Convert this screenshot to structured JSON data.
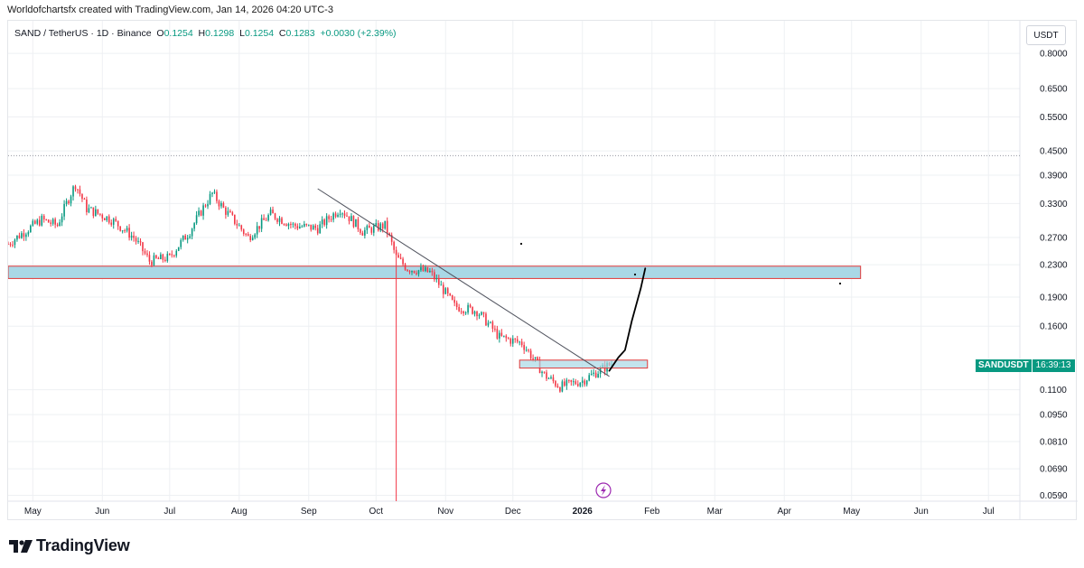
{
  "header": {
    "text": "Worldofchartsfx created with TradingView.com, Jan 14, 2026 04:20 UTC-3"
  },
  "legend": {
    "symbol": "SAND / TetherUS · 1D · Binance",
    "o_label": "O",
    "o_value": "0.1254",
    "h_label": "H",
    "h_value": "0.1298",
    "l_label": "L",
    "l_value": "0.1254",
    "c_label": "C",
    "c_value": "0.1283",
    "change": "+0.0030 (+2.39%)"
  },
  "currency": "USDT",
  "price_tag": {
    "symbol": "SANDUSDT",
    "countdown": "16:39:13"
  },
  "footer": {
    "logo_text": "TradingView"
  },
  "colors": {
    "up": "#089981",
    "down": "#f23645",
    "zone_fill": "#a9d8e6",
    "zone_border": "#e03a3a",
    "trendline": "#50535e",
    "drawing": "#000000",
    "grid": "#eef0f3",
    "axis_text": "#131722"
  },
  "chart_data": {
    "type": "candlestick",
    "title": "SAND / TetherUS · 1D · Binance",
    "y_scale": "log",
    "y_ticks": [
      0.8,
      0.65,
      0.55,
      0.45,
      0.39,
      0.33,
      0.27,
      0.23,
      0.19,
      0.16,
      0.11,
      0.095,
      0.081,
      0.069,
      0.059
    ],
    "y_tick_labels": [
      "0.8000",
      "0.6500",
      "0.5500",
      "0.4500",
      "0.3900",
      "0.3300",
      "0.2700",
      "0.2300",
      "0.1900",
      "0.1600",
      "0.1100",
      "0.0950",
      "0.0810",
      "0.0690",
      "0.0590"
    ],
    "x_tick_labels": [
      "May",
      "Jun",
      "Jul",
      "Aug",
      "Sep",
      "Oct",
      "Nov",
      "Dec",
      "2026",
      "Feb",
      "Mar",
      "Apr",
      "May",
      "Jun",
      "Jul"
    ],
    "x_tick_dates": [
      "2025-05-01",
      "2025-06-01",
      "2025-07-01",
      "2025-08-01",
      "2025-09-01",
      "2025-10-01",
      "2025-11-01",
      "2025-12-01",
      "2026-01-01",
      "2026-02-01",
      "2026-03-01",
      "2026-04-01",
      "2026-05-01",
      "2026-06-01",
      "2026-07-01"
    ],
    "x_range": [
      "2025-04-20",
      "2026-07-15"
    ],
    "y_range": [
      0.057,
      0.9
    ],
    "last_price": 0.1283,
    "price_path": [
      [
        "2025-04-20",
        0.26
      ],
      [
        "2025-05-05",
        0.3
      ],
      [
        "2025-05-12",
        0.29
      ],
      [
        "2025-05-20",
        0.37
      ],
      [
        "2025-05-25",
        0.32
      ],
      [
        "2025-06-05",
        0.3
      ],
      [
        "2025-06-15",
        0.27
      ],
      [
        "2025-06-22",
        0.235
      ],
      [
        "2025-07-01",
        0.24
      ],
      [
        "2025-07-10",
        0.28
      ],
      [
        "2025-07-20",
        0.35
      ],
      [
        "2025-07-25",
        0.32
      ],
      [
        "2025-08-05",
        0.27
      ],
      [
        "2025-08-15",
        0.31
      ],
      [
        "2025-08-25",
        0.29
      ],
      [
        "2025-09-05",
        0.285
      ],
      [
        "2025-09-15",
        0.32
      ],
      [
        "2025-09-25",
        0.28
      ],
      [
        "2025-10-05",
        0.29
      ],
      [
        "2025-10-10",
        0.24
      ],
      [
        "2025-10-15",
        0.225
      ],
      [
        "2025-10-25",
        0.22
      ],
      [
        "2025-11-05",
        0.18
      ],
      [
        "2025-11-15",
        0.175
      ],
      [
        "2025-11-25",
        0.15
      ],
      [
        "2025-12-05",
        0.145
      ],
      [
        "2025-12-15",
        0.12
      ],
      [
        "2025-12-22",
        0.112
      ],
      [
        "2026-01-01",
        0.116
      ],
      [
        "2026-01-14",
        0.1283
      ]
    ],
    "annotations": {
      "resistance_zone": {
        "x_start": "2025-04-20",
        "x_end": "2026-05-05",
        "y_low": 0.212,
        "y_high": 0.228
      },
      "support_zone": {
        "x_start": "2025-12-04",
        "x_end": "2026-01-30",
        "y_low": 0.125,
        "y_high": 0.131
      },
      "trendline": {
        "start": [
          "2025-09-05",
          0.36
        ],
        "end": [
          "2026-01-13",
          0.119
        ]
      },
      "projected_path": [
        [
          "2026-01-13",
          0.123
        ],
        [
          "2026-01-17",
          0.133
        ],
        [
          "2026-01-20",
          0.139
        ],
        [
          "2026-01-23",
          0.165
        ],
        [
          "2026-01-27",
          0.2
        ],
        [
          "2026-01-29",
          0.225
        ]
      ],
      "spike": {
        "date": "2025-10-10",
        "low": 0.057,
        "high": 0.26
      }
    }
  }
}
